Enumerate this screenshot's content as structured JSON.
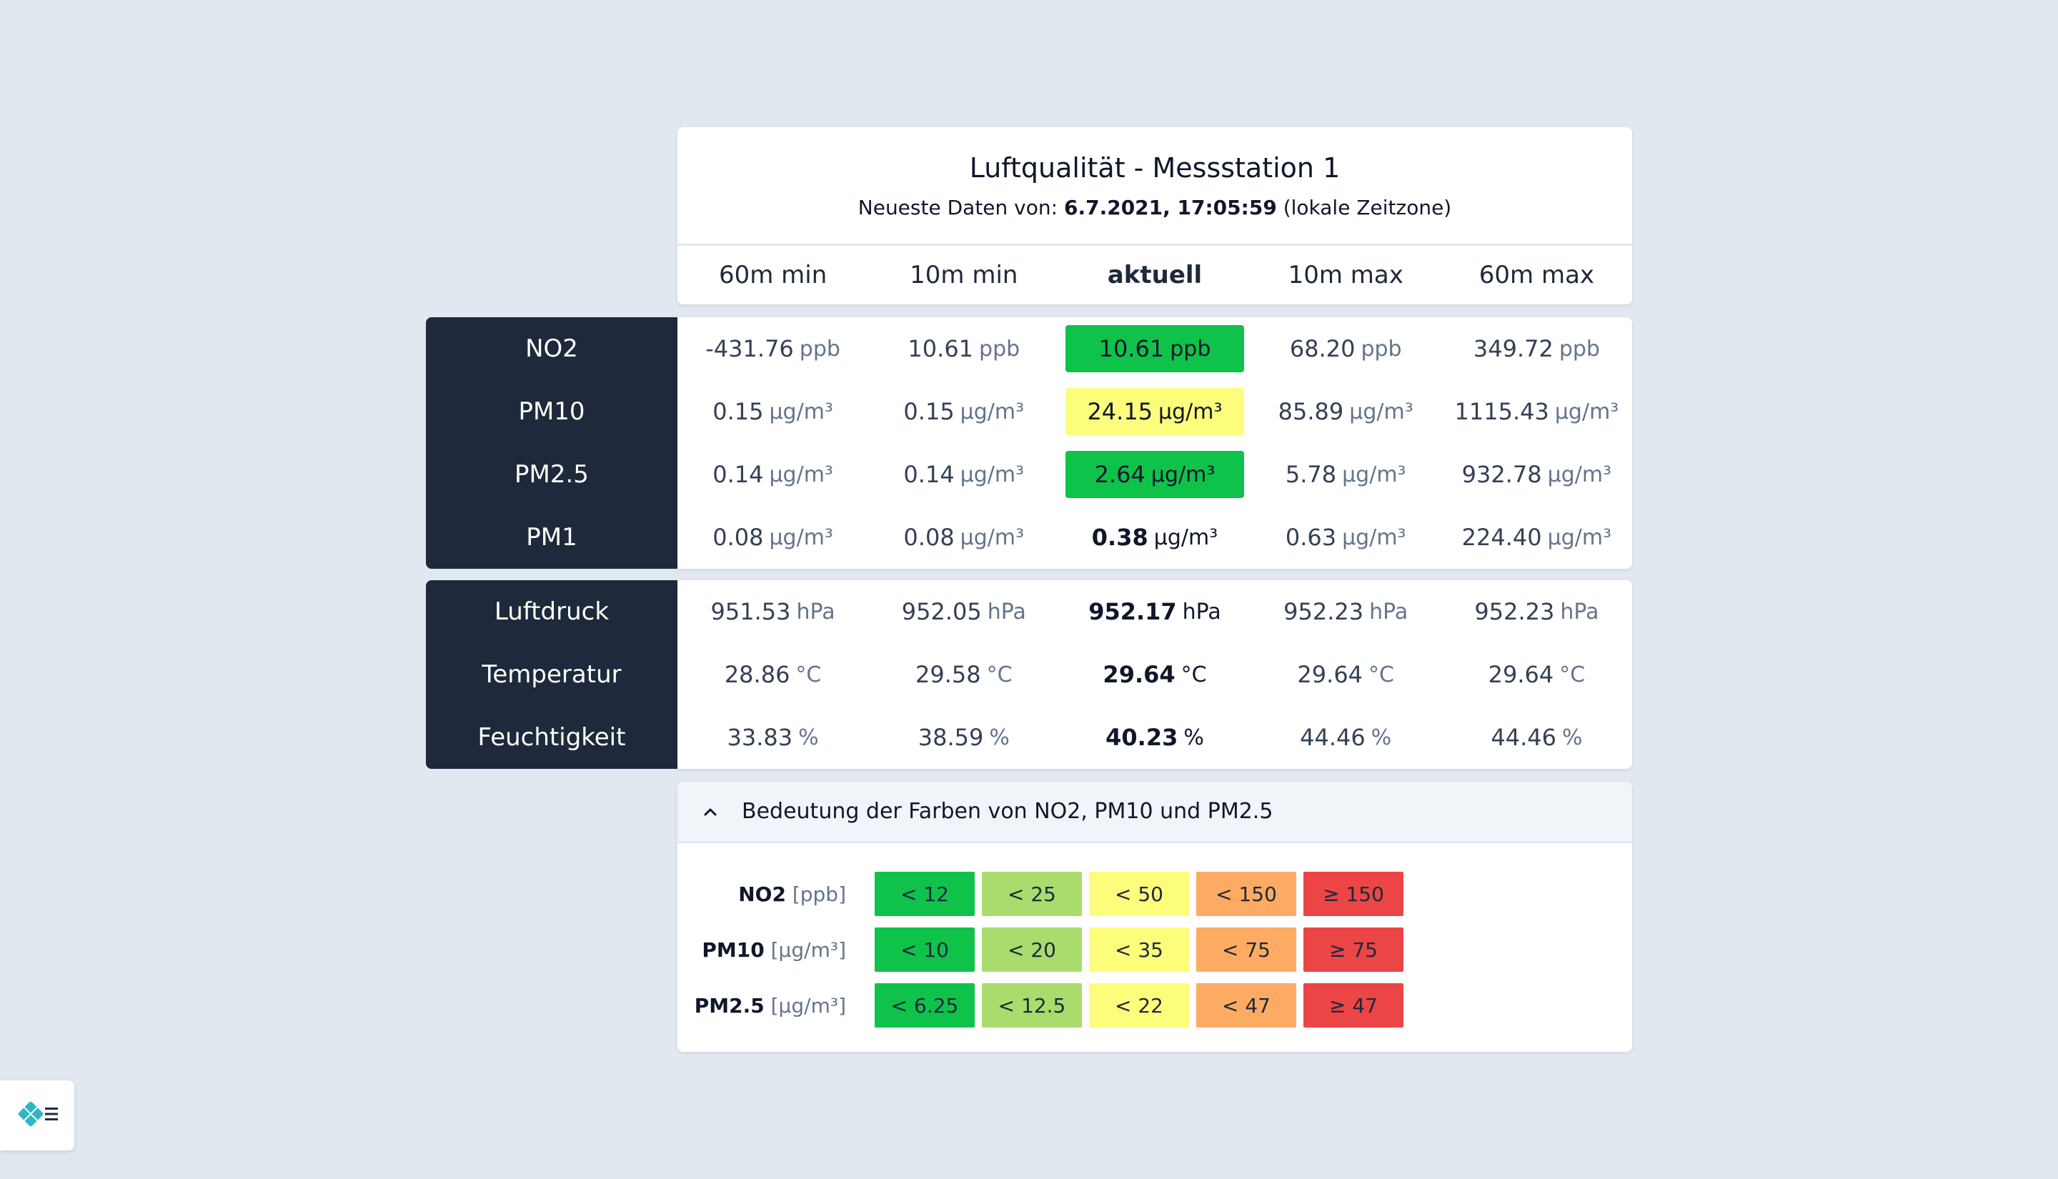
{
  "header": {
    "title": "Luftqualität - Messstation 1",
    "subtitle_prefix": "Neueste Daten von: ",
    "subtitle_date": "6.7.2021, 17:05:59",
    "subtitle_suffix": " (lokale Zeitzone)"
  },
  "columns": [
    "60m min",
    "10m min",
    "aktuell",
    "10m max",
    "60m max"
  ],
  "air_quality": [
    {
      "label": "NO2",
      "unit": "ppb",
      "values": [
        "-431.76",
        "10.61",
        "10.61",
        "68.20",
        "349.72"
      ],
      "current_color": "#0fc24a"
    },
    {
      "label": "PM10",
      "unit": "µg/m³",
      "values": [
        "0.15",
        "0.15",
        "24.15",
        "85.89",
        "1115.43"
      ],
      "current_color": "#fdfd7c"
    },
    {
      "label": "PM2.5",
      "unit": "µg/m³",
      "values": [
        "0.14",
        "0.14",
        "2.64",
        "5.78",
        "932.78"
      ],
      "current_color": "#0fc24a"
    },
    {
      "label": "PM1",
      "unit": "µg/m³",
      "values": [
        "0.08",
        "0.08",
        "0.38",
        "0.63",
        "224.40"
      ],
      "current_color": ""
    }
  ],
  "environment": [
    {
      "label": "Luftdruck",
      "unit": "hPa",
      "values": [
        "951.53",
        "952.05",
        "952.17",
        "952.23",
        "952.23"
      ]
    },
    {
      "label": "Temperatur",
      "unit": "°C",
      "values": [
        "28.86",
        "29.58",
        "29.64",
        "29.64",
        "29.64"
      ]
    },
    {
      "label": "Feuchtigkeit",
      "unit": "%",
      "values": [
        "33.83",
        "38.59",
        "40.23",
        "44.46",
        "44.46"
      ]
    }
  ],
  "legend": {
    "toggle_label": "Bedeutung der Farben von NO2, PM10 und PM2.5",
    "colors": [
      "#0fc24a",
      "#a9dc6c",
      "#fdfd7c",
      "#fdab62",
      "#ec4545"
    ],
    "rows": [
      {
        "name": "NO2",
        "unit": "[ppb]",
        "thresholds": [
          "< 12",
          "< 25",
          "< 50",
          "< 150",
          "≥ 150"
        ]
      },
      {
        "name": "PM10",
        "unit": "[µg/m³]",
        "thresholds": [
          "< 10",
          "< 20",
          "< 35",
          "< 75",
          "≥ 75"
        ]
      },
      {
        "name": "PM2.5",
        "unit": "[µg/m³]",
        "thresholds": [
          "< 6.25",
          "< 12.5",
          "< 22",
          "< 47",
          "≥ 47"
        ]
      }
    ]
  },
  "icons": {
    "legend_toggle": "chevron-up-icon",
    "menu_button": "netlify-menu-icon"
  }
}
